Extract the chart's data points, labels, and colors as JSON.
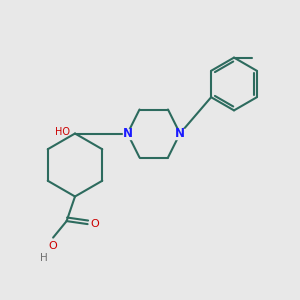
{
  "bg_color": "#e8e8e8",
  "bond_color": "#2d6b5e",
  "N_color": "#1a1aff",
  "O_color": "#cc0000",
  "H_color": "#707070",
  "line_width": 1.5,
  "fig_size": [
    3.0,
    3.0
  ],
  "dpi": 100,
  "xlim": [
    0,
    10
  ],
  "ylim": [
    0,
    10
  ]
}
